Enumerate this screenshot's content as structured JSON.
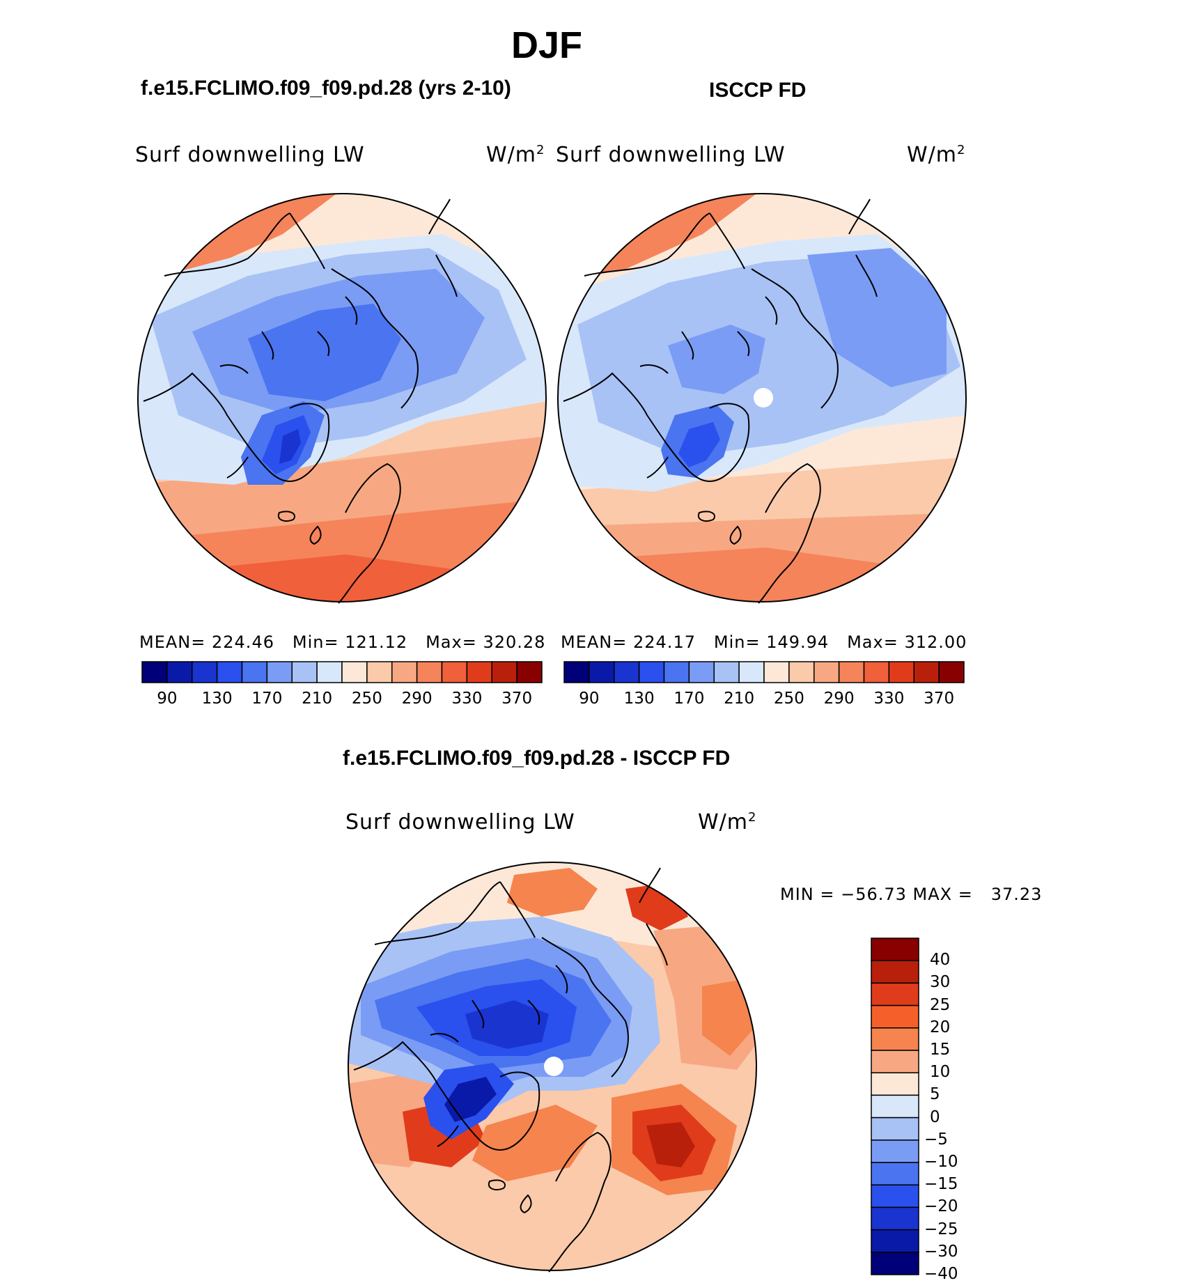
{
  "title": "DJF",
  "panels": [
    {
      "id": "model",
      "title": "f.e15.FCLIMO.f09_f09.pd.28 (yrs 2-10)",
      "variable": "Surf downwelling LW",
      "units_base": "W/m",
      "units_exp": "2",
      "stats": {
        "mean_label": "MEAN=",
        "mean": "224.46",
        "min_label": "Min=",
        "min": "121.12",
        "max_label": "Max=",
        "max": "320.28"
      }
    },
    {
      "id": "obs",
      "title": "ISCCP FD",
      "variable": "Surf downwelling LW",
      "units_base": "W/m",
      "units_exp": "2",
      "stats": {
        "mean_label": "MEAN=",
        "mean": "224.17",
        "min_label": "Min=",
        "min": "149.94",
        "max_label": "Max=",
        "max": "312.00"
      }
    }
  ],
  "colorbar_abs": {
    "colors": [
      "#000078",
      "#0a1aa8",
      "#1a34d0",
      "#2a50ee",
      "#4a74f0",
      "#7a9cf4",
      "#a8c2f6",
      "#d8e8fa",
      "#fde8d8",
      "#fbcaaa",
      "#f7a882",
      "#f5845a",
      "#f0603a",
      "#e03c1c",
      "#b8200c",
      "#880000"
    ],
    "ticks": [
      "90",
      "130",
      "170",
      "210",
      "250",
      "290",
      "330",
      "370"
    ]
  },
  "difference": {
    "title": "f.e15.FCLIMO.f09_f09.pd.28 - ISCCP FD",
    "variable": "Surf downwelling LW",
    "units_base": "W/m",
    "units_exp": "2",
    "minmax_text": "MIN = −56.73 MAX =   37.23",
    "colorbar": {
      "colors": [
        "#880000",
        "#b8200c",
        "#e03c1c",
        "#f5602a",
        "#f5844e",
        "#f7a882",
        "#fde8d8",
        "#d8e8fa",
        "#a8c2f6",
        "#7a9cf4",
        "#4a74f0",
        "#2a50ee",
        "#1a34d0",
        "#0a1aa8",
        "#000078"
      ],
      "ticks": [
        "40",
        "30",
        "25",
        "20",
        "15",
        "10",
        "5",
        "0",
        "−5",
        "−10",
        "−15",
        "−20",
        "−25",
        "−30",
        "−40"
      ]
    }
  },
  "map_colors": {
    "land": "#000000",
    "pole_mask": "#ffffff"
  }
}
